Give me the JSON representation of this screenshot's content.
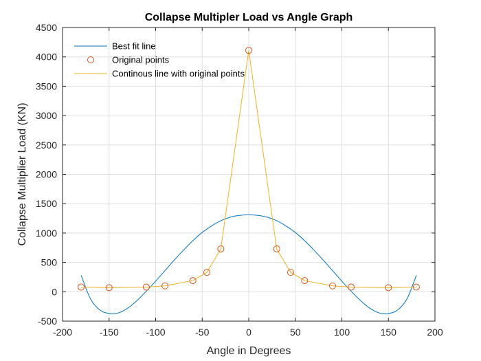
{
  "chart_data": {
    "type": "line",
    "title": "Collapse Multipler Load vs Angle Graph",
    "xlabel": "Angle in Degrees",
    "ylabel": "Collapse Multiplier Load (KN)",
    "xlim": [
      -200,
      200
    ],
    "ylim": [
      -500,
      4500
    ],
    "xticks": [
      -200,
      -150,
      -100,
      -50,
      0,
      50,
      100,
      150,
      200
    ],
    "yticks": [
      -500,
      0,
      500,
      1000,
      1500,
      2000,
      2500,
      3000,
      3500,
      4000,
      4500
    ],
    "grid": true,
    "legend_position": "top-left",
    "series": [
      {
        "name": "Best fit line",
        "kind": "line",
        "color": "#0072BD",
        "x": [
          -180,
          -170,
          -160,
          -150,
          -140,
          -130,
          -120,
          -110,
          -100,
          -90,
          -80,
          -70,
          -60,
          -50,
          -40,
          -30,
          -20,
          -10,
          0,
          10,
          20,
          30,
          40,
          50,
          60,
          70,
          80,
          90,
          100,
          110,
          120,
          130,
          140,
          150,
          160,
          170,
          180
        ],
        "y": [
          280,
          -120,
          -310,
          -370,
          -360,
          -280,
          -150,
          10,
          180,
          360,
          540,
          710,
          870,
          1010,
          1120,
          1210,
          1270,
          1300,
          1310,
          1300,
          1270,
          1210,
          1120,
          1010,
          870,
          710,
          540,
          360,
          180,
          10,
          -150,
          -280,
          -360,
          -370,
          -310,
          -120,
          280
        ]
      },
      {
        "name": "Original points",
        "kind": "markers",
        "color": "#D95319",
        "x": [
          -180,
          -150,
          -110,
          -90,
          -60,
          -45,
          -30,
          0,
          30,
          45,
          60,
          90,
          110,
          150,
          180
        ],
        "y": [
          80,
          70,
          80,
          100,
          190,
          330,
          730,
          4110,
          730,
          330,
          190,
          100,
          80,
          70,
          80
        ]
      },
      {
        "name": "Continous line with original points",
        "kind": "line",
        "color": "#EDB120",
        "x": [
          -180,
          -150,
          -110,
          -90,
          -60,
          -45,
          -30,
          0,
          30,
          45,
          60,
          90,
          110,
          150,
          180
        ],
        "y": [
          80,
          70,
          80,
          100,
          190,
          330,
          730,
          4110,
          730,
          330,
          190,
          100,
          80,
          70,
          80
        ]
      }
    ]
  }
}
